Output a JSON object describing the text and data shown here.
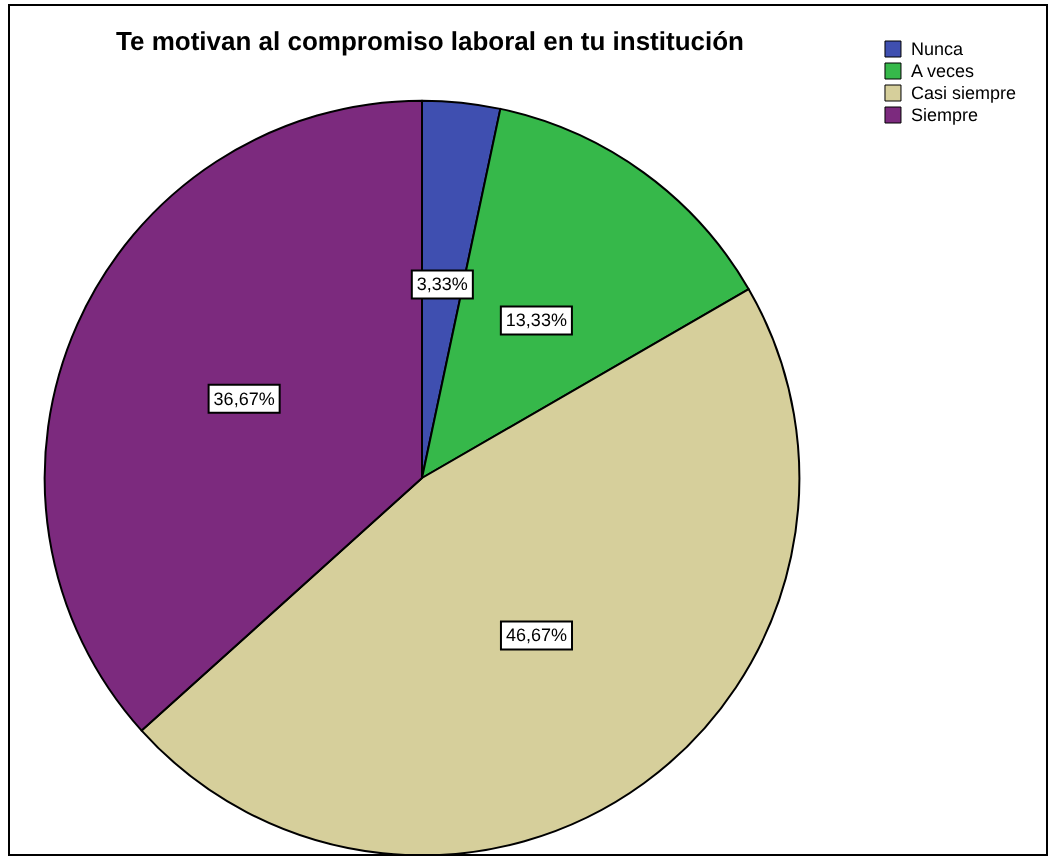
{
  "chart_data": {
    "type": "pie",
    "title": "Te motivan al compromiso laboral en tu institución",
    "categories": [
      "Nunca",
      "A veces",
      "Casi siempre",
      "Siempre"
    ],
    "values": [
      3.33,
      13.33,
      46.67,
      36.67
    ],
    "value_labels": [
      "3,33%",
      "13,33%",
      "46,67%",
      "36,67%"
    ],
    "colors": [
      "#3f4fb0",
      "#36b84a",
      "#d6cf9b",
      "#7c2a7e"
    ],
    "legend": "top right"
  }
}
